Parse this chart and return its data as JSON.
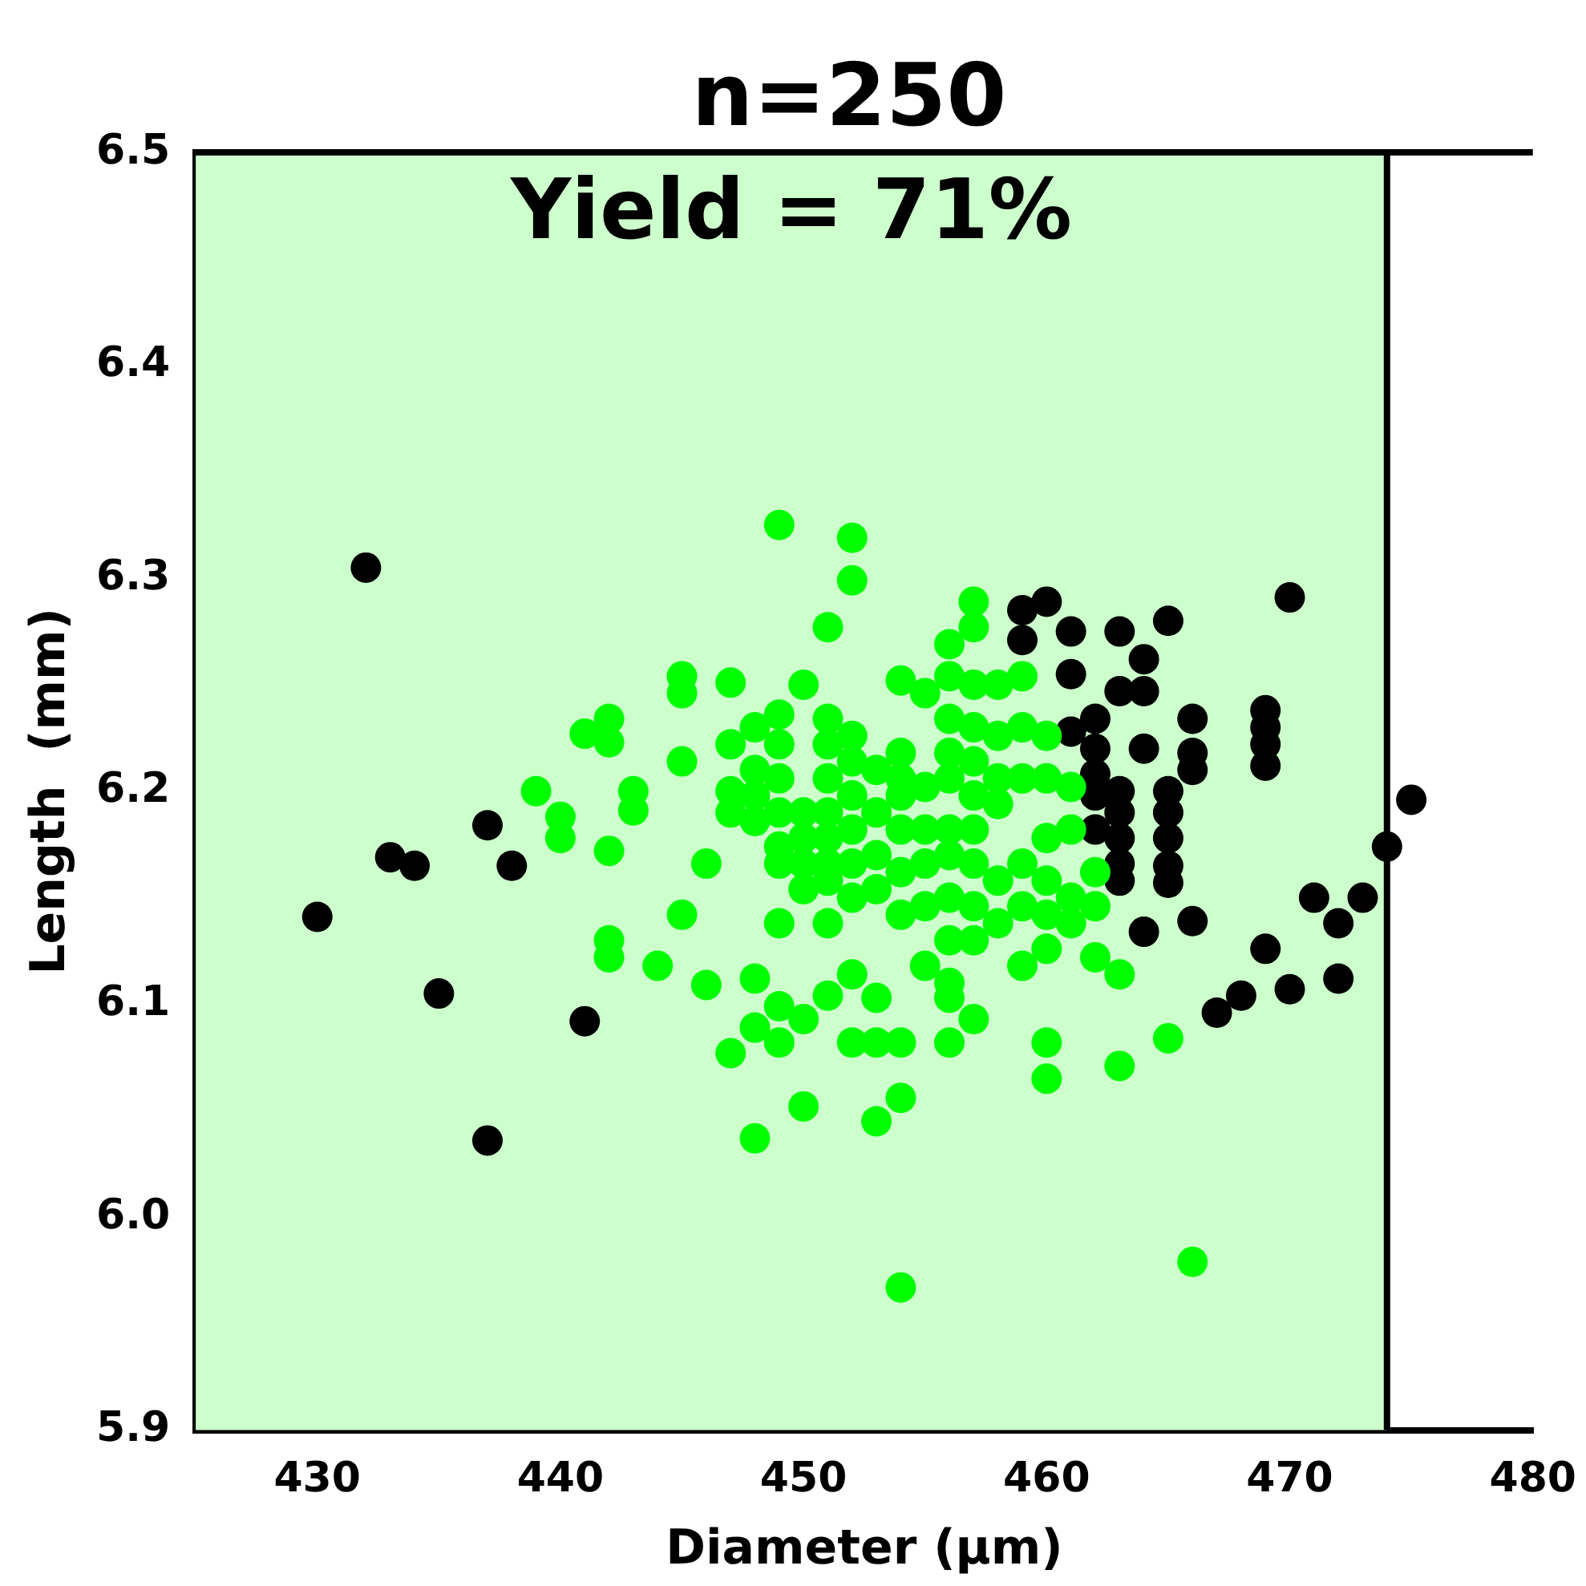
{
  "chart_data": {
    "type": "scatter",
    "title": "n=250",
    "annotations": [
      "Yield = 71%"
    ],
    "xlabel": "Diameter (µm)",
    "ylabel": "Length  (mm)",
    "xlim": [
      425,
      480
    ],
    "xticks": [
      430,
      440,
      450,
      460,
      470,
      480
    ],
    "ylim": [
      5.9,
      6.5
    ],
    "yticks": [
      5.9,
      {
        "value": 6,
        "label": "6.0"
      },
      6.1,
      6.2,
      6.3,
      6.4,
      6.5
    ],
    "ref_lines": [
      {
        "axis": "x",
        "value": 474,
        "color": "#000000"
      }
    ],
    "grid": false,
    "legend": false,
    "marker": "circle",
    "bands": [
      {
        "axis": "x",
        "from": 425,
        "to": 474,
        "color": "#ccffcc"
      }
    ],
    "series": [
      {
        "color": "#00ff00",
        "x": [
          439,
          440,
          440,
          441,
          442,
          442,
          442,
          442,
          442,
          443,
          443,
          444,
          445,
          445,
          445,
          445,
          446,
          446,
          447,
          447,
          447,
          447,
          447,
          448,
          448,
          448,
          448,
          448,
          448,
          448,
          449,
          449,
          449,
          449,
          449,
          449,
          449,
          449,
          449,
          449,
          450,
          450,
          450,
          450,
          450,
          450,
          450,
          451,
          451,
          451,
          451,
          451,
          451,
          451,
          451,
          451,
          451,
          452,
          452,
          452,
          452,
          452,
          452,
          452,
          452,
          452,
          452,
          453,
          453,
          453,
          453,
          453,
          453,
          453,
          454,
          454,
          454,
          454,
          454,
          454,
          454,
          454,
          454,
          454,
          455,
          455,
          455,
          455,
          455,
          455,
          456,
          456,
          456,
          456,
          456,
          456,
          456,
          456,
          456,
          456,
          456,
          456,
          457,
          457,
          457,
          457,
          457,
          457,
          457,
          457,
          457,
          457,
          457,
          458,
          458,
          458,
          458,
          458,
          458,
          459,
          459,
          459,
          459,
          459,
          459,
          460,
          460,
          460,
          460,
          460,
          460,
          460,
          460,
          461,
          461,
          461,
          461,
          462,
          462,
          462,
          463,
          463,
          465,
          466
        ],
        "values": [
          6.2,
          6.188,
          6.178,
          6.227,
          6.234,
          6.223,
          6.172,
          6.13,
          6.122,
          6.2,
          6.191,
          6.118,
          6.254,
          6.246,
          6.214,
          6.142,
          6.166,
          6.109,
          6.251,
          6.222,
          6.2,
          6.19,
          6.077,
          6.23,
          6.21,
          6.198,
          6.186,
          6.112,
          6.089,
          6.037,
          6.325,
          6.236,
          6.222,
          6.206,
          6.19,
          6.174,
          6.166,
          6.138,
          6.099,
          6.082,
          6.25,
          6.19,
          6.178,
          6.166,
          6.154,
          6.093,
          6.052,
          6.277,
          6.234,
          6.222,
          6.206,
          6.19,
          6.178,
          6.166,
          6.158,
          6.138,
          6.104,
          6.319,
          6.299,
          6.226,
          6.214,
          6.198,
          6.182,
          6.166,
          6.15,
          6.114,
          6.082,
          6.21,
          6.19,
          6.17,
          6.154,
          6.103,
          6.082,
          6.045,
          6.252,
          6.218,
          6.206,
          6.198,
          6.182,
          6.162,
          6.142,
          6.082,
          6.056,
          5.967,
          6.246,
          6.202,
          6.182,
          6.166,
          6.146,
          6.118,
          6.269,
          6.254,
          6.234,
          6.218,
          6.206,
          6.182,
          6.17,
          6.15,
          6.13,
          6.11,
          6.103,
          6.082,
          6.289,
          6.277,
          6.25,
          6.23,
          6.214,
          6.198,
          6.182,
          6.166,
          6.146,
          6.13,
          6.093,
          6.25,
          6.226,
          6.206,
          6.194,
          6.158,
          6.138,
          6.254,
          6.23,
          6.206,
          6.166,
          6.146,
          6.118,
          6.226,
          6.206,
          6.178,
          6.158,
          6.142,
          6.126,
          6.082,
          6.065,
          6.202,
          6.182,
          6.15,
          6.138,
          6.162,
          6.146,
          6.122,
          6.114,
          6.071,
          6.084,
          5.979
        ]
      },
      {
        "color": "#000000",
        "x": [
          430,
          432,
          433,
          434,
          435,
          437,
          437,
          438,
          441,
          459,
          460,
          459,
          461,
          461,
          463,
          463,
          464,
          464,
          465,
          470,
          462,
          461,
          462,
          464,
          466,
          466,
          469,
          469,
          469,
          469,
          462,
          462,
          463,
          463,
          465,
          465,
          466,
          462,
          463,
          463,
          463,
          465,
          465,
          465,
          464,
          466,
          474,
          475,
          471,
          473,
          472,
          469,
          472,
          470,
          468,
          467
        ],
        "values": [
          6.141,
          6.305,
          6.169,
          6.165,
          6.105,
          6.184,
          6.036,
          6.165,
          6.092,
          6.285,
          6.289,
          6.271,
          6.275,
          6.255,
          6.275,
          6.247,
          6.262,
          6.247,
          6.28,
          6.291,
          6.234,
          6.228,
          6.22,
          6.22,
          6.234,
          6.218,
          6.238,
          6.23,
          6.222,
          6.212,
          6.208,
          6.198,
          6.2,
          6.19,
          6.2,
          6.19,
          6.21,
          6.182,
          6.178,
          6.166,
          6.158,
          6.178,
          6.165,
          6.157,
          6.134,
          6.139,
          6.174,
          6.196,
          6.15,
          6.15,
          6.138,
          6.126,
          6.112,
          6.107,
          6.104,
          6.096
        ]
      }
    ]
  }
}
